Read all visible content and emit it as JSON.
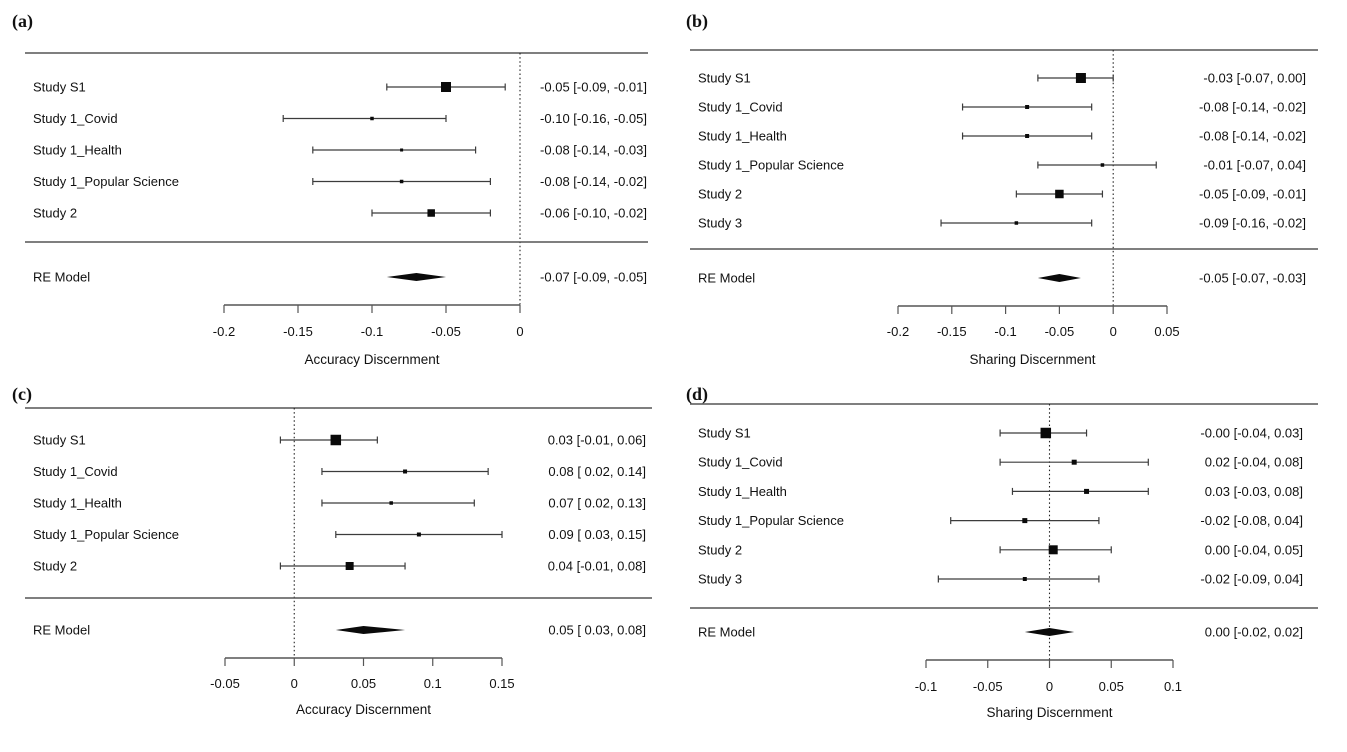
{
  "figure": {
    "background_color": "#ffffff",
    "text_color": "#111111",
    "line_color": "#555555",
    "marker_color": "#0a0a0a"
  },
  "chart_data": [
    {
      "type": "forest",
      "panel_label": "(a)",
      "xlabel": "Accuracy Discernment",
      "axis_range": [
        -0.2,
        0
      ],
      "refline": 0,
      "x_ticks": [
        {
          "v": -0.2,
          "label": "-0.2"
        },
        {
          "v": -0.15,
          "label": "-0.15"
        },
        {
          "v": -0.1,
          "label": "-0.1"
        },
        {
          "v": -0.05,
          "label": "-0.05"
        },
        {
          "v": 0,
          "label": "0"
        }
      ],
      "studies": [
        {
          "label": "Study S1",
          "est": -0.05,
          "lo": -0.09,
          "hi": -0.01,
          "annotation": "-0.05 [-0.09, -0.01]",
          "square": 10
        },
        {
          "label": "Study 1_Covid",
          "est": -0.1,
          "lo": -0.16,
          "hi": -0.05,
          "annotation": "-0.10 [-0.16, -0.05]",
          "square": 3.5
        },
        {
          "label": "Study 1_Health",
          "est": -0.08,
          "lo": -0.14,
          "hi": -0.03,
          "annotation": "-0.08 [-0.14, -0.03]",
          "square": 3
        },
        {
          "label": "Study 1_Popular Science",
          "est": -0.08,
          "lo": -0.14,
          "hi": -0.02,
          "annotation": "-0.08 [-0.14, -0.02]",
          "square": 3.5
        },
        {
          "label": "Study 2",
          "est": -0.06,
          "lo": -0.1,
          "hi": -0.02,
          "annotation": "-0.06 [-0.10, -0.02]",
          "square": 7.5
        }
      ],
      "summary": {
        "label": "RE Model",
        "est": -0.07,
        "lo": -0.09,
        "hi": -0.05,
        "annotation": "-0.07 [-0.09, -0.05]"
      }
    },
    {
      "type": "forest",
      "panel_label": "(b)",
      "xlabel": "Sharing Discernment",
      "axis_range": [
        -0.2,
        0.05
      ],
      "refline": 0,
      "x_ticks": [
        {
          "v": -0.2,
          "label": "-0.2"
        },
        {
          "v": -0.15,
          "label": "-0.15"
        },
        {
          "v": -0.1,
          "label": "-0.1"
        },
        {
          "v": -0.05,
          "label": "-0.05"
        },
        {
          "v": 0,
          "label": "0"
        },
        {
          "v": 0.05,
          "label": "0.05"
        }
      ],
      "studies": [
        {
          "label": "Study S1",
          "est": -0.03,
          "lo": -0.07,
          "hi": 0.0,
          "annotation": "-0.03 [-0.07,  0.00]",
          "square": 10
        },
        {
          "label": "Study 1_Covid",
          "est": -0.08,
          "lo": -0.14,
          "hi": -0.02,
          "annotation": "-0.08 [-0.14, -0.02]",
          "square": 4
        },
        {
          "label": "Study 1_Health",
          "est": -0.08,
          "lo": -0.14,
          "hi": -0.02,
          "annotation": "-0.08 [-0.14, -0.02]",
          "square": 4
        },
        {
          "label": "Study 1_Popular Science",
          "est": -0.01,
          "lo": -0.07,
          "hi": 0.04,
          "annotation": "-0.01 [-0.07,  0.04]",
          "square": 3.5
        },
        {
          "label": "Study 2",
          "est": -0.05,
          "lo": -0.09,
          "hi": -0.01,
          "annotation": "-0.05 [-0.09, -0.01]",
          "square": 8.5
        },
        {
          "label": "Study 3",
          "est": -0.09,
          "lo": -0.16,
          "hi": -0.02,
          "annotation": "-0.09 [-0.16, -0.02]",
          "square": 3.5
        }
      ],
      "summary": {
        "label": "RE Model",
        "est": -0.05,
        "lo": -0.07,
        "hi": -0.03,
        "annotation": "-0.05 [-0.07, -0.03]"
      }
    },
    {
      "type": "forest",
      "panel_label": "(c)",
      "xlabel": "Accuracy Discernment",
      "axis_range": [
        -0.05,
        0.15
      ],
      "refline": 0,
      "x_ticks": [
        {
          "v": -0.05,
          "label": "-0.05"
        },
        {
          "v": 0,
          "label": "0"
        },
        {
          "v": 0.05,
          "label": "0.05"
        },
        {
          "v": 0.1,
          "label": "0.1"
        },
        {
          "v": 0.15,
          "label": "0.15"
        }
      ],
      "studies": [
        {
          "label": "Study S1",
          "est": 0.03,
          "lo": -0.01,
          "hi": 0.06,
          "annotation": "0.03 [-0.01, 0.06]",
          "square": 10.5
        },
        {
          "label": "Study 1_Covid",
          "est": 0.08,
          "lo": 0.02,
          "hi": 0.14,
          "annotation": "0.08 [ 0.02, 0.14]",
          "square": 4
        },
        {
          "label": "Study 1_Health",
          "est": 0.07,
          "lo": 0.02,
          "hi": 0.13,
          "annotation": "0.07 [ 0.02, 0.13]",
          "square": 3.5
        },
        {
          "label": "Study 1_Popular Science",
          "est": 0.09,
          "lo": 0.03,
          "hi": 0.15,
          "annotation": "0.09 [ 0.03, 0.15]",
          "square": 4
        },
        {
          "label": "Study 2",
          "est": 0.04,
          "lo": -0.01,
          "hi": 0.08,
          "annotation": "0.04 [-0.01, 0.08]",
          "square": 8
        }
      ],
      "summary": {
        "label": "RE Model",
        "est": 0.05,
        "lo": 0.03,
        "hi": 0.08,
        "annotation": "0.05 [ 0.03, 0.08]"
      }
    },
    {
      "type": "forest",
      "panel_label": "(d)",
      "xlabel": "Sharing Discernment",
      "axis_range": [
        -0.1,
        0.1
      ],
      "refline": 0,
      "x_ticks": [
        {
          "v": -0.1,
          "label": "-0.1"
        },
        {
          "v": -0.05,
          "label": "-0.05"
        },
        {
          "v": 0,
          "label": "0"
        },
        {
          "v": 0.05,
          "label": "0.05"
        },
        {
          "v": 0.1,
          "label": "0.1"
        }
      ],
      "studies": [
        {
          "label": "Study S1",
          "est": -0.003,
          "lo": -0.04,
          "hi": 0.03,
          "annotation": "-0.00 [-0.04, 0.03]",
          "square": 10.5
        },
        {
          "label": "Study 1_Covid",
          "est": 0.02,
          "lo": -0.04,
          "hi": 0.08,
          "annotation": "0.02 [-0.04, 0.08]",
          "square": 5
        },
        {
          "label": "Study 1_Health",
          "est": 0.03,
          "lo": -0.03,
          "hi": 0.08,
          "annotation": "0.03 [-0.03, 0.08]",
          "square": 5
        },
        {
          "label": "Study 1_Popular Science",
          "est": -0.02,
          "lo": -0.08,
          "hi": 0.04,
          "annotation": "-0.02 [-0.08, 0.04]",
          "square": 5
        },
        {
          "label": "Study 2",
          "est": 0.003,
          "lo": -0.04,
          "hi": 0.05,
          "annotation": "0.00 [-0.04, 0.05]",
          "square": 9
        },
        {
          "label": "Study 3",
          "est": -0.02,
          "lo": -0.09,
          "hi": 0.04,
          "annotation": "-0.02 [-0.09, 0.04]",
          "square": 4
        }
      ],
      "summary": {
        "label": "RE Model",
        "est": 0.0,
        "lo": -0.02,
        "hi": 0.02,
        "annotation": "0.00 [-0.02, 0.02]"
      }
    }
  ]
}
